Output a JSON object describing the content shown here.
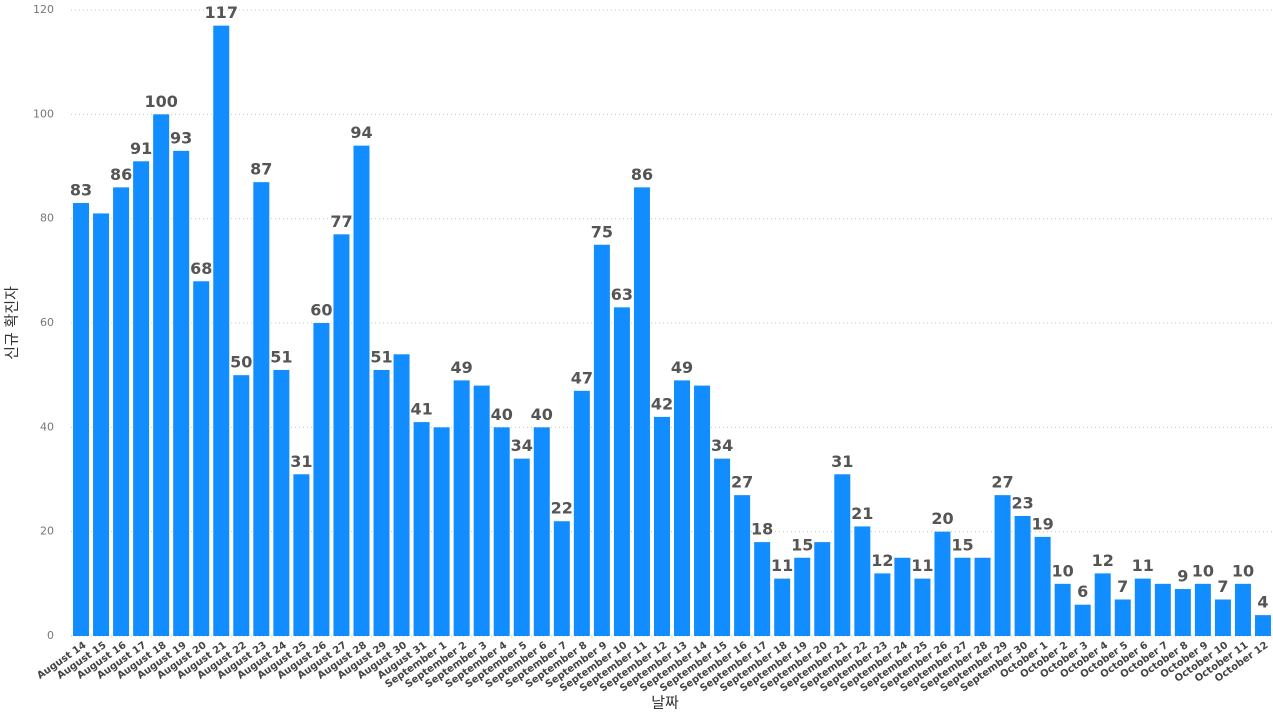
{
  "chart_data": {
    "type": "bar",
    "x_label": "날짜",
    "y_label": "신규 확진자",
    "categories": [
      "August 14",
      "August 15",
      "August 16",
      "August 17",
      "August 18",
      "August 19",
      "August 20",
      "August 21",
      "August 22",
      "August 23",
      "August 24",
      "August 25",
      "August 26",
      "August 27",
      "August 28",
      "August 29",
      "August 30",
      "August 31",
      "September 1",
      "September 2",
      "September 3",
      "September 4",
      "September 5",
      "September 6",
      "September 7",
      "September 8",
      "September 9",
      "September 10",
      "September 11",
      "September 12",
      "September 13",
      "September 14",
      "September 15",
      "September 16",
      "September 17",
      "September 18",
      "September 19",
      "September 20",
      "September 21",
      "September 22",
      "September 23",
      "September 24",
      "September 25",
      "September 26",
      "September 27",
      "September 28",
      "September 29",
      "September 30",
      "October 1",
      "October 2",
      "October 3",
      "October 4",
      "October 5",
      "October 6",
      "October 7",
      "October 8",
      "October 9",
      "October 10",
      "October 11",
      "October 12"
    ],
    "values": [
      83,
      81,
      86,
      91,
      100,
      93,
      68,
      117,
      50,
      87,
      51,
      31,
      60,
      77,
      94,
      51,
      54,
      41,
      40,
      49,
      48,
      40,
      34,
      40,
      22,
      47,
      75,
      63,
      86,
      42,
      49,
      48,
      34,
      27,
      18,
      11,
      15,
      18,
      31,
      21,
      12,
      15,
      11,
      20,
      15,
      15,
      27,
      23,
      19,
      10,
      6,
      12,
      7,
      11,
      10,
      9,
      10,
      7,
      10,
      4
    ],
    "value_labels": [
      83,
      null,
      86,
      91,
      100,
      93,
      68,
      117,
      50,
      87,
      51,
      31,
      60,
      77,
      94,
      51,
      null,
      41,
      null,
      49,
      null,
      40,
      34,
      40,
      22,
      47,
      75,
      63,
      86,
      42,
      49,
      null,
      34,
      27,
      18,
      11,
      15,
      null,
      31,
      21,
      12,
      null,
      11,
      20,
      15,
      null,
      27,
      23,
      19,
      10,
      6,
      12,
      7,
      11,
      null,
      9,
      10,
      7,
      10,
      4
    ],
    "color": "#118dff",
    "ylim": [
      0,
      120
    ],
    "yticks": [
      0,
      20,
      40,
      60,
      80,
      100,
      120
    ],
    "grid": true
  }
}
